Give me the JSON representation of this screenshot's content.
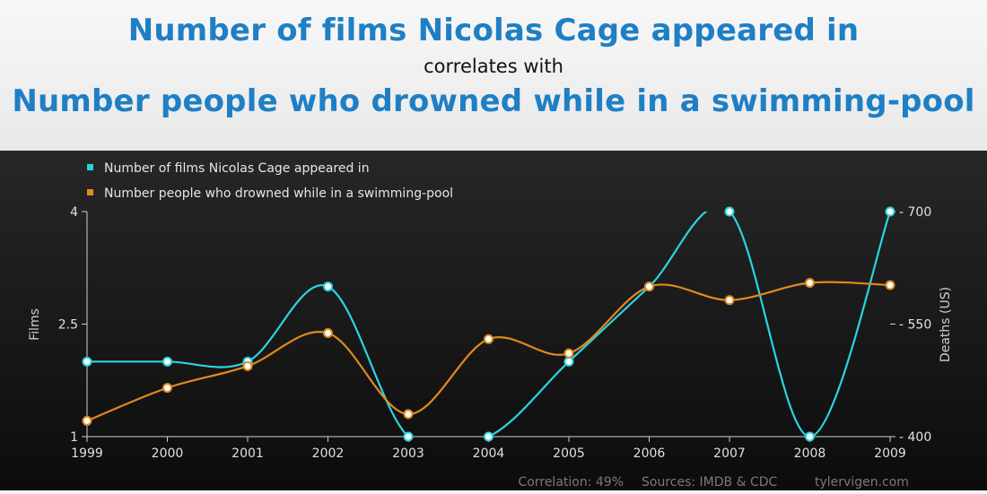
{
  "header": {
    "title_primary": "Number of films Nicolas Cage appeared in",
    "connector": "correlates with",
    "title_secondary": "Number people who drowned while in a swimming-pool"
  },
  "chart_data": {
    "type": "line",
    "x": [
      "1999",
      "2000",
      "2001",
      "2002",
      "2003",
      "2004",
      "2005",
      "2006",
      "2007",
      "2008",
      "2009"
    ],
    "series": [
      {
        "name": "Number of films Nicolas Cage appeared in",
        "axis": "left",
        "color": "#2bd4e0",
        "values": [
          2,
          2,
          2,
          3,
          1,
          1,
          2,
          3,
          4,
          1,
          4
        ]
      },
      {
        "name": "Number people who drowned while in a swimming-pool",
        "axis": "right",
        "color": "#e08a1e",
        "values": [
          421,
          465,
          494,
          538,
          430,
          530,
          511,
          600,
          582,
          605,
          602
        ]
      }
    ],
    "y_left": {
      "label": "Films",
      "ticks": [
        "1",
        "2.5",
        "4"
      ],
      "range": [
        1,
        4
      ]
    },
    "y_right": {
      "label": "Deaths (US)",
      "ticks": [
        "400",
        "550",
        "700"
      ],
      "range": [
        400,
        700
      ]
    },
    "legend_position": "top-left",
    "grid": false
  },
  "footer": {
    "correlation": "Correlation: 49%",
    "sources": "Sources: IMDB & CDC",
    "site": "tylervigen.com"
  }
}
